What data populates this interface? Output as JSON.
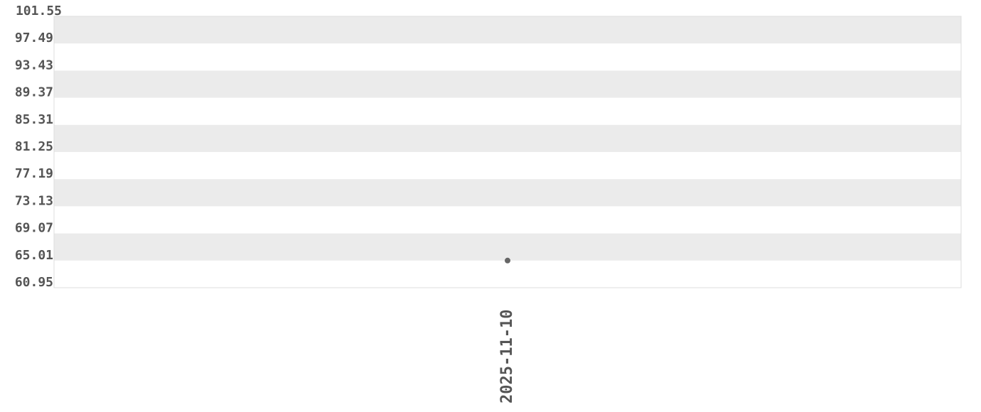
{
  "chart_data": {
    "type": "scatter",
    "title": "",
    "xlabel": "",
    "ylabel": "",
    "x_categories": [
      "2025-11-10"
    ],
    "points": [
      {
        "x": "2025-11-10",
        "y": 65.01
      }
    ],
    "ylim": [
      60.95,
      101.55
    ],
    "y_ticks": [
      "101.55",
      "97.49",
      "93.43",
      "89.37",
      "85.31",
      "81.25",
      "77.19",
      "73.13",
      "69.07",
      "65.01",
      "60.95"
    ],
    "grid": "alternating horizontal bands",
    "colors": {
      "band": "#ebebeb",
      "point": "#666666",
      "text": "#555555",
      "border": "#dddddd"
    }
  }
}
